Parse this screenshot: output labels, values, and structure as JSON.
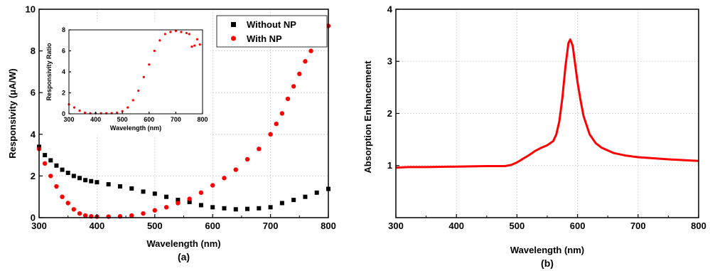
{
  "chart_data": [
    {
      "id": "a",
      "type": "scatter",
      "panel_label": "(a)",
      "xlabel": "Wavelength (nm)",
      "ylabel": "Responsivity (μA/W)",
      "xlim": [
        300,
        800
      ],
      "ylim": [
        0,
        10
      ],
      "xticks": [
        "300",
        "400",
        "500",
        "600",
        "700",
        "800"
      ],
      "yticks": [
        "0",
        "2",
        "4",
        "6",
        "8",
        "10"
      ],
      "grid": true,
      "legend_position": "top-right",
      "series": [
        {
          "name": "Without NP",
          "marker": "square",
          "color": "#000000",
          "x": [
            300,
            310,
            320,
            330,
            340,
            350,
            360,
            370,
            380,
            390,
            400,
            420,
            440,
            460,
            480,
            500,
            520,
            540,
            560,
            580,
            600,
            620,
            640,
            660,
            680,
            700,
            720,
            740,
            760,
            780,
            800
          ],
          "y": [
            3.4,
            3.0,
            2.75,
            2.5,
            2.3,
            2.15,
            2.0,
            1.9,
            1.8,
            1.75,
            1.7,
            1.6,
            1.5,
            1.4,
            1.25,
            1.15,
            1.0,
            0.85,
            0.75,
            0.6,
            0.5,
            0.45,
            0.4,
            0.42,
            0.45,
            0.5,
            0.7,
            0.85,
            1.0,
            1.2,
            1.38
          ]
        },
        {
          "name": "With NP",
          "marker": "circle",
          "color": "#ff0000",
          "x": [
            300,
            310,
            320,
            330,
            340,
            350,
            360,
            370,
            380,
            390,
            400,
            420,
            440,
            460,
            480,
            500,
            520,
            540,
            560,
            580,
            600,
            620,
            640,
            660,
            680,
            700,
            710,
            720,
            730,
            740,
            750,
            760,
            770,
            780,
            790,
            800
          ],
          "y": [
            3.3,
            2.6,
            2.0,
            1.5,
            1.0,
            0.7,
            0.4,
            0.2,
            0.1,
            0.06,
            0.05,
            0.05,
            0.06,
            0.1,
            0.2,
            0.35,
            0.5,
            0.7,
            0.9,
            1.2,
            1.55,
            1.9,
            2.3,
            2.8,
            3.3,
            4.0,
            4.5,
            5.0,
            5.7,
            6.3,
            6.9,
            7.5,
            8.0,
            8.5,
            8.8,
            9.2
          ]
        }
      ],
      "inset": {
        "type": "scatter",
        "xlabel": "Wavelength (nm)",
        "ylabel": "Responsivity Ratio",
        "xlim": [
          300,
          800
        ],
        "ylim": [
          0,
          8
        ],
        "xticks": [
          "300",
          "400",
          "500",
          "600",
          "700",
          "800"
        ],
        "yticks": [
          "0",
          "2",
          "4",
          "6",
          "8"
        ],
        "color": "#ff0000",
        "x": [
          300,
          320,
          340,
          360,
          380,
          400,
          420,
          440,
          460,
          480,
          500,
          520,
          540,
          560,
          580,
          600,
          620,
          640,
          660,
          680,
          700,
          720,
          740,
          750,
          760,
          770,
          780,
          790
        ],
        "y": [
          0.9,
          0.6,
          0.3,
          0.1,
          0.05,
          0.05,
          0.05,
          0.05,
          0.06,
          0.1,
          0.25,
          0.6,
          1.3,
          2.2,
          3.5,
          4.7,
          6.0,
          7.0,
          7.6,
          7.8,
          7.9,
          7.8,
          7.7,
          7.6,
          6.4,
          6.5,
          7.1,
          6.6
        ]
      }
    },
    {
      "id": "b",
      "type": "line",
      "panel_label": "(b)",
      "xlabel": "Wavelength (nm)",
      "ylabel": "Absorption Enhancement",
      "xlim": [
        300,
        800
      ],
      "ylim": [
        0,
        4
      ],
      "xticks": [
        "300",
        "400",
        "500",
        "600",
        "700",
        "800"
      ],
      "yticks": [
        "1",
        "2",
        "3",
        "4"
      ],
      "grid": true,
      "series": [
        {
          "color": "#ff0000",
          "x": [
            300,
            320,
            350,
            400,
            450,
            480,
            490,
            500,
            510,
            520,
            530,
            540,
            550,
            560,
            565,
            570,
            575,
            580,
            585,
            588,
            592,
            596,
            600,
            605,
            610,
            620,
            630,
            640,
            660,
            680,
            700,
            750,
            800
          ],
          "y": [
            0.96,
            0.97,
            0.97,
            0.98,
            0.99,
            0.99,
            1.01,
            1.06,
            1.13,
            1.2,
            1.28,
            1.34,
            1.39,
            1.47,
            1.6,
            1.85,
            2.3,
            2.9,
            3.35,
            3.42,
            3.3,
            2.95,
            2.6,
            2.25,
            1.95,
            1.6,
            1.43,
            1.34,
            1.24,
            1.19,
            1.16,
            1.12,
            1.09
          ]
        }
      ]
    }
  ]
}
